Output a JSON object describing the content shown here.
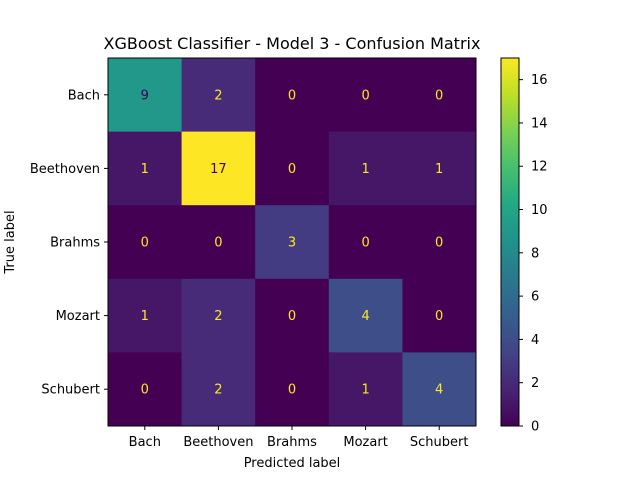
{
  "chart_data": {
    "type": "heatmap",
    "title": "XGBoost Classifier - Model 3 - Confusion Matrix",
    "xlabel": "Predicted label",
    "ylabel": "True label",
    "x_categories": [
      "Bach",
      "Beethoven",
      "Brahms",
      "Mozart",
      "Schubert"
    ],
    "y_categories": [
      "Bach",
      "Beethoven",
      "Brahms",
      "Mozart",
      "Schubert"
    ],
    "values": [
      [
        9,
        2,
        0,
        0,
        0
      ],
      [
        1,
        17,
        0,
        1,
        1
      ],
      [
        0,
        0,
        3,
        0,
        0
      ],
      [
        1,
        2,
        0,
        4,
        0
      ],
      [
        0,
        2,
        0,
        1,
        4
      ]
    ],
    "colormap": "viridis",
    "vmin": 0,
    "vmax": 17,
    "colorbar_ticks": [
      0,
      2,
      4,
      6,
      8,
      10,
      12,
      14,
      16
    ],
    "text_color_dark_cells": "#fde725",
    "text_color_light_cells": "#440154"
  }
}
